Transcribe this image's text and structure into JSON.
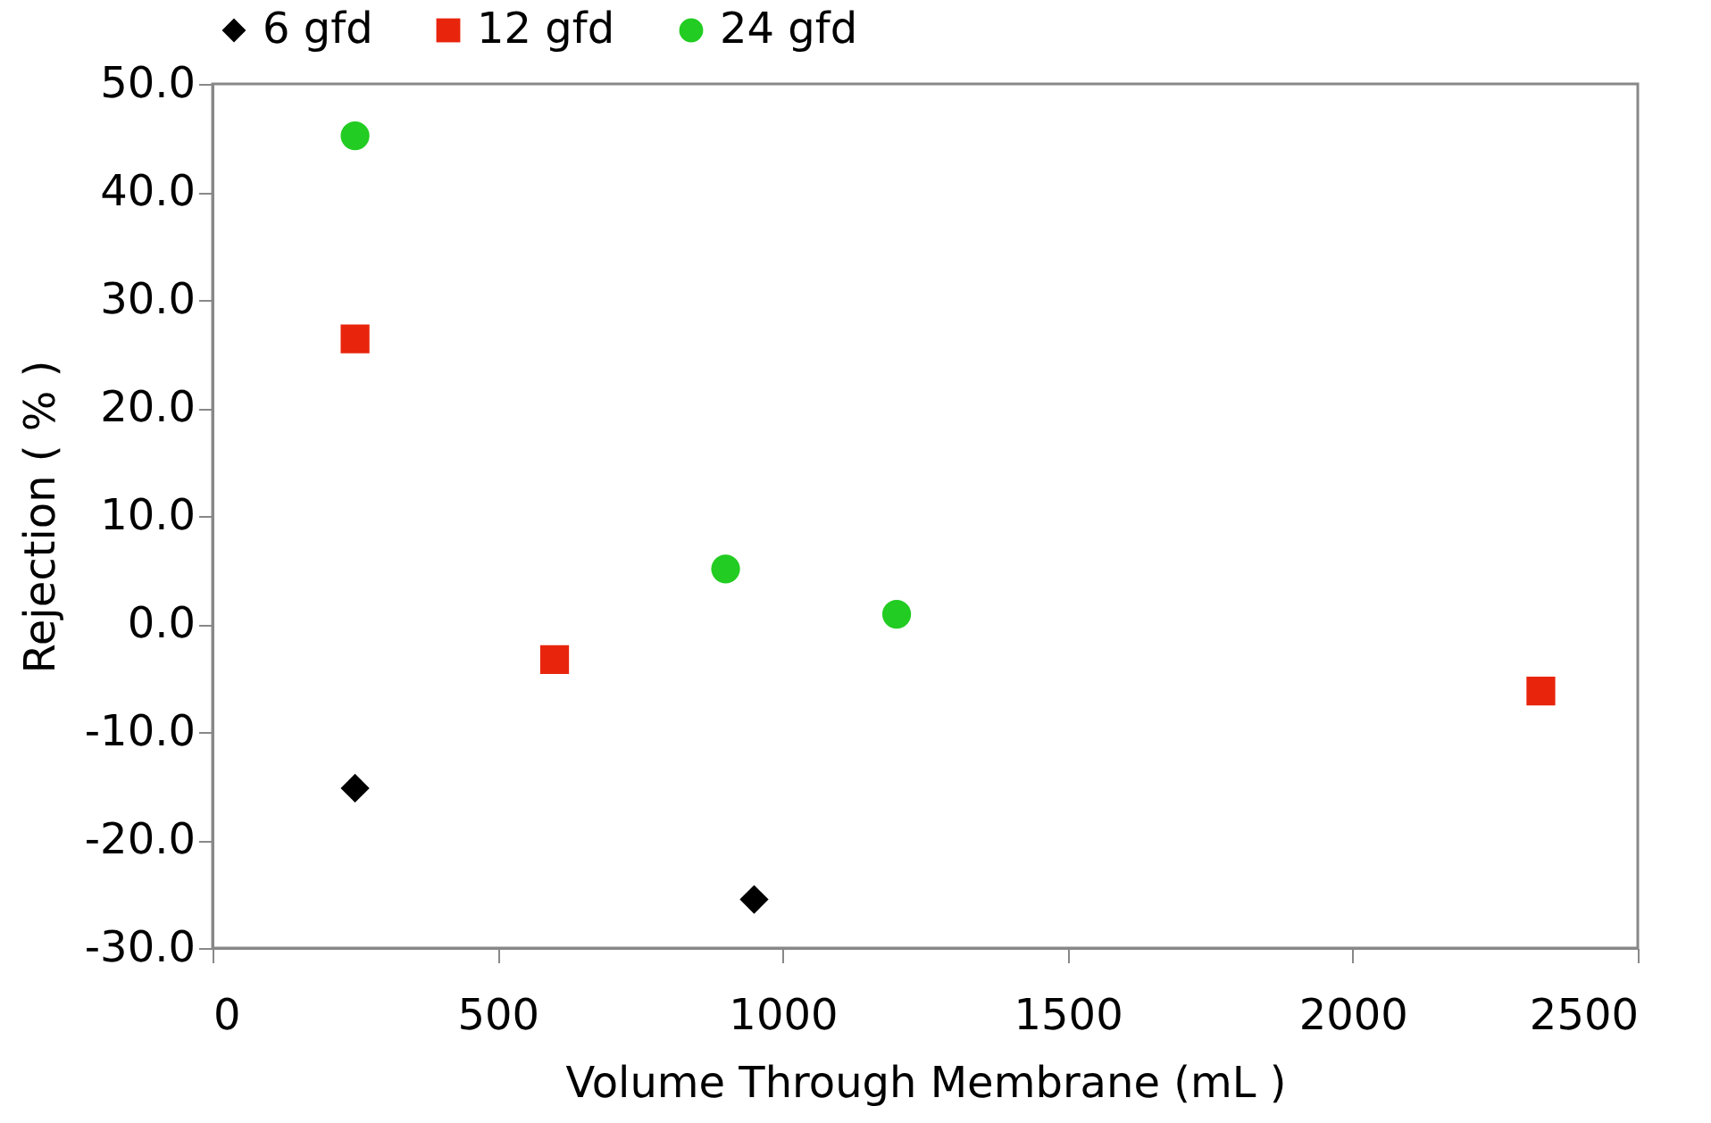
{
  "chart_data": {
    "type": "scatter",
    "xlabel": "Volume Through Membrane (mL )",
    "ylabel": "Rejection ( % )",
    "xlim": [
      0,
      2500
    ],
    "xticks": [
      0,
      500,
      1000,
      1500,
      2000,
      2500
    ],
    "ylim": [
      -30,
      50
    ],
    "yticks": [
      {
        "value": -30,
        "label": "-30.0"
      },
      {
        "value": -20,
        "label": "-20.0"
      },
      {
        "value": -10,
        "label": "-10.0"
      },
      {
        "value": 0,
        "label": "0.0"
      },
      {
        "value": 10,
        "label": "10.0"
      },
      {
        "value": 20,
        "label": "20.0"
      },
      {
        "value": 30,
        "label": "30.0"
      },
      {
        "value": 40,
        "label": "40.0"
      },
      {
        "value": 50,
        "label": "50.0"
      }
    ],
    "grid": false,
    "legend": "top",
    "series": [
      {
        "name": "6 gfd",
        "color": "#000000",
        "marker": "diamond",
        "x": [
          250,
          950
        ],
        "values": [
          -15.2,
          -25.5
        ]
      },
      {
        "name": "12 gfd",
        "color": "#e8250c",
        "marker": "square",
        "x": [
          250,
          600,
          2330
        ],
        "values": [
          26.4,
          -3.3,
          -6.2
        ]
      },
      {
        "name": "24 gfd",
        "color": "#22cc22",
        "marker": "circle",
        "x": [
          250,
          900,
          1200
        ],
        "values": [
          45.2,
          5.1,
          0.9
        ]
      }
    ]
  }
}
